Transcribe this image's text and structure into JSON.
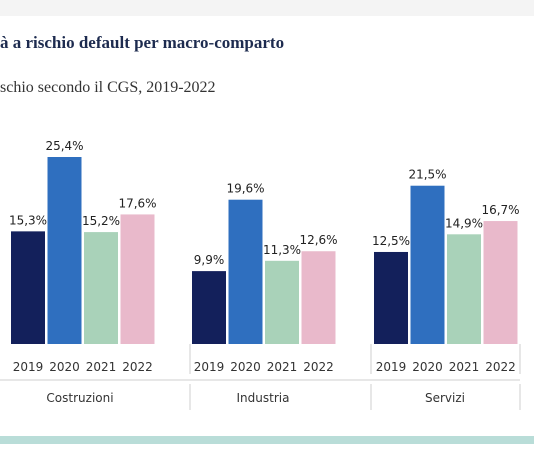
{
  "title": "à a rischio default per macro-comparto",
  "subtitle": "schio secondo il CGS, 2019-2022",
  "colors": {
    "2019": "#13205b",
    "2020": "#2f6fbf",
    "2021": "#a9d2b9",
    "2022": "#e9b9cb",
    "divider": "#cfcfcf",
    "text": "#333333",
    "footer_band": "#b9ddd8"
  },
  "chart_data": {
    "type": "bar",
    "title": "à a rischio default per macro-comparto",
    "subtitle": "schio secondo il CGS, 2019-2022",
    "ylim": [
      0,
      30
    ],
    "grid": false,
    "categories": [
      "Costruzioni",
      "Industria",
      "Servizi"
    ],
    "series": [
      {
        "name": "2019",
        "values": [
          15.3,
          9.9,
          12.5
        ],
        "labels": [
          "15,3%",
          "9,9%",
          "12,5%"
        ]
      },
      {
        "name": "2020",
        "values": [
          25.4,
          19.6,
          21.5
        ],
        "labels": [
          "25,4%",
          "19,6%",
          "21,5%"
        ]
      },
      {
        "name": "2021",
        "values": [
          15.2,
          11.3,
          14.9
        ],
        "labels": [
          "15,2%",
          "11,3%",
          "14,9%"
        ]
      },
      {
        "name": "2022",
        "values": [
          17.6,
          12.6,
          16.7
        ],
        "labels": [
          "17,6%",
          "12,6%",
          "16,7%"
        ]
      }
    ]
  }
}
